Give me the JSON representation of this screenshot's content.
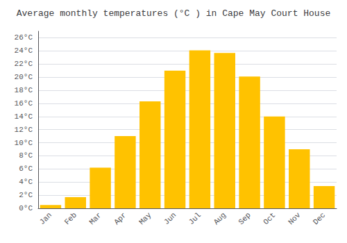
{
  "chart_data": {
    "type": "bar",
    "title": "Average monthly temperatures (°C ) in Cape May Court House",
    "categories": [
      "Jan",
      "Feb",
      "Mar",
      "Apr",
      "May",
      "Jun",
      "Jul",
      "Aug",
      "Sep",
      "Oct",
      "Nov",
      "Dec"
    ],
    "values": [
      0.5,
      1.7,
      6.2,
      11.0,
      16.3,
      21.0,
      24.1,
      23.7,
      20.1,
      14.0,
      9.0,
      3.4
    ],
    "color": "#FFC200",
    "ylim": [
      0,
      27
    ],
    "yticks": [
      {
        "value": 0,
        "label": "0°C"
      },
      {
        "value": 2,
        "label": "2°C"
      },
      {
        "value": 4,
        "label": "4°C"
      },
      {
        "value": 6,
        "label": "6°C"
      },
      {
        "value": 8,
        "label": "8°C"
      },
      {
        "value": 10,
        "label": "10°C"
      },
      {
        "value": 12,
        "label": "12°C"
      },
      {
        "value": 14,
        "label": "14°C"
      },
      {
        "value": 16,
        "label": "16°C"
      },
      {
        "value": 18,
        "label": "18°C"
      },
      {
        "value": 20,
        "label": "20°C"
      },
      {
        "value": 22,
        "label": "22°C"
      },
      {
        "value": 24,
        "label": "24°C"
      },
      {
        "value": 26,
        "label": "26°C"
      }
    ],
    "grid": true
  }
}
